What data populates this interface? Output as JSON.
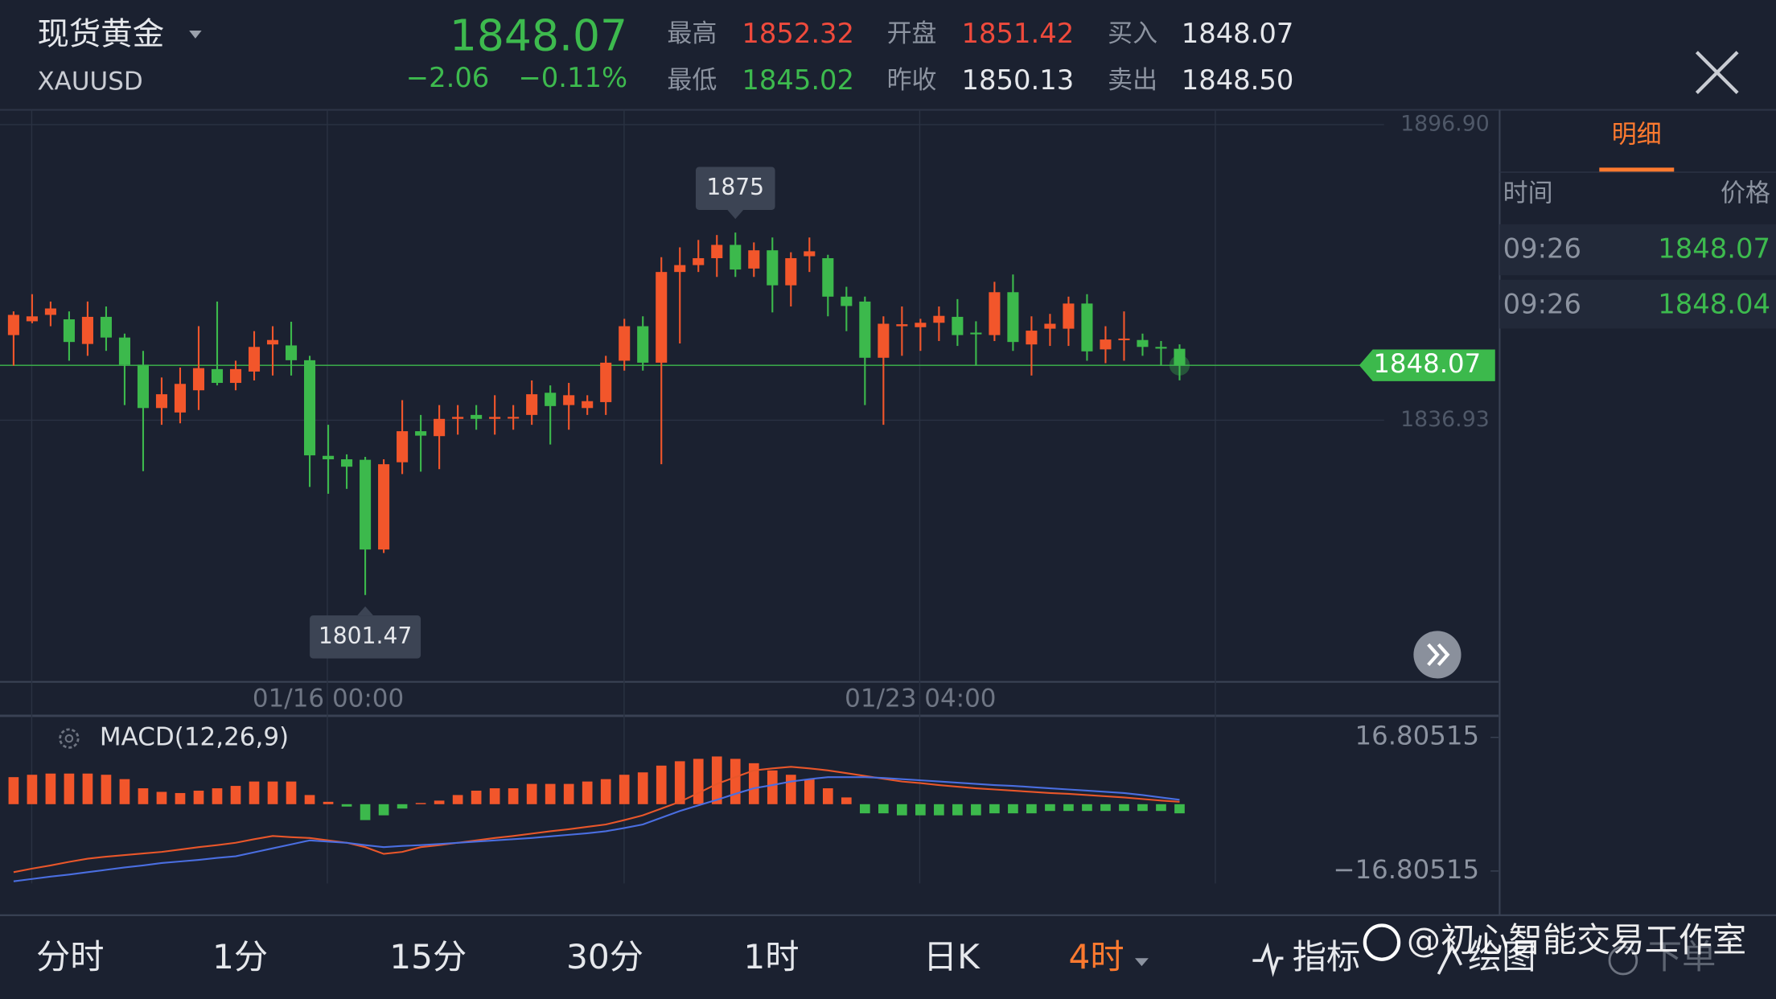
{
  "header": {
    "name": "现货黄金",
    "symbol": "XAUUSD",
    "price": "1848.07",
    "change": "−2.06",
    "change_pct": "−0.11%",
    "high_label": "最高",
    "high": "1852.32",
    "low_label": "最低",
    "low": "1845.02",
    "open_label": "开盘",
    "open": "1851.42",
    "prev_close_label": "昨收",
    "prev_close": "1850.13",
    "bid_label": "买入",
    "bid": "1848.07",
    "ask_label": "卖出",
    "ask": "1848.50"
  },
  "chart_data": [
    {
      "type": "candlestick",
      "categories": [
        null,
        null,
        null,
        null,
        null,
        null,
        null,
        null,
        null,
        null,
        null,
        null,
        null,
        null,
        null,
        null,
        null,
        "01/16 00:00",
        null,
        null,
        null,
        null,
        null,
        null,
        null,
        null,
        null,
        null,
        null,
        null,
        null,
        null,
        null,
        null,
        null,
        null,
        null,
        null,
        null,
        null,
        null,
        null,
        null,
        null,
        null,
        null,
        null,
        null,
        null,
        "01/23 04:00",
        null,
        null,
        null,
        null,
        null,
        null,
        null,
        null,
        null,
        null,
        null,
        null,
        null,
        null
      ],
      "open": [
        1854.2,
        1857,
        1858.3,
        1857.4,
        1852.4,
        1857.9,
        1853.7,
        1848.2,
        1839.4,
        1838.5,
        1843,
        1847.3,
        1844.5,
        1846.8,
        1852.3,
        1852.1,
        1849.1,
        1829.7,
        1829,
        1828.9,
        1810.7,
        1828.4,
        1834.7,
        1833.7,
        1837.2,
        1838,
        1837.2,
        1837.5,
        1838,
        1842.5,
        1840,
        1839.4,
        1840.6,
        1849,
        1856,
        1848.6,
        1867,
        1868.4,
        1869.8,
        1872.5,
        1867.7,
        1871.4,
        1864.3,
        1870.2,
        1869.8,
        1862,
        1861,
        1849.6,
        1856,
        1855.8,
        1856.7,
        1857.9,
        1854.7,
        1854.2,
        1862.9,
        1852.3,
        1855.5,
        1855.5,
        1860.6,
        1851.3,
        1853.3,
        1853.2,
        1851.8,
        1851.42
      ],
      "high": [
        1859,
        1862.5,
        1861,
        1859,
        1861,
        1860,
        1854.5,
        1851,
        1845.6,
        1847.6,
        1856,
        1861,
        1849,
        1855,
        1856,
        1856.9,
        1850,
        1836,
        1830,
        1829.5,
        1829,
        1841,
        1838,
        1840,
        1840,
        1840,
        1842,
        1840,
        1845,
        1844,
        1844.5,
        1842,
        1850,
        1857.5,
        1858,
        1870,
        1872,
        1873.5,
        1874.5,
        1875,
        1873,
        1874,
        1871,
        1874,
        1870.5,
        1864,
        1862,
        1858,
        1860,
        1857.5,
        1860,
        1861.5,
        1857,
        1865,
        1866.5,
        1858,
        1858.5,
        1862,
        1862.5,
        1856,
        1859,
        1854.5,
        1853,
        1852.32
      ],
      "low": [
        1848,
        1856.6,
        1856,
        1849,
        1850,
        1851,
        1840,
        1826.6,
        1836,
        1836.3,
        1839,
        1844,
        1843,
        1845,
        1846,
        1846,
        1823.4,
        1822,
        1823,
        1801.47,
        1810,
        1826,
        1826.5,
        1827,
        1834,
        1835,
        1834,
        1835,
        1836,
        1832,
        1835,
        1838,
        1838,
        1847,
        1847,
        1828,
        1852.5,
        1867,
        1866,
        1866,
        1866,
        1858.8,
        1860,
        1867,
        1858,
        1855,
        1840,
        1836,
        1850,
        1851,
        1853,
        1852,
        1848,
        1853,
        1851,
        1846,
        1852,
        1852,
        1849,
        1848.5,
        1849,
        1850,
        1848,
        1845.02
      ],
      "close": [
        1858.3,
        1858,
        1859.6,
        1852.8,
        1857.9,
        1853.7,
        1848.2,
        1839.4,
        1842.2,
        1844.3,
        1847.5,
        1844.5,
        1847.3,
        1851.8,
        1853.2,
        1849.1,
        1829.8,
        1829,
        1827.5,
        1810.7,
        1828,
        1834.7,
        1833.8,
        1837.2,
        1837.6,
        1837.2,
        1837.6,
        1837.6,
        1842.2,
        1839.8,
        1842,
        1840.8,
        1848.6,
        1856,
        1848.6,
        1867,
        1868.4,
        1869.8,
        1872.5,
        1867.5,
        1871.4,
        1864.3,
        1869.8,
        1871.2,
        1862,
        1860.1,
        1849.6,
        1856.5,
        1856.4,
        1856.7,
        1858.1,
        1854.2,
        1854.5,
        1862.9,
        1852.8,
        1855.1,
        1856.5,
        1860.6,
        1850.9,
        1853.3,
        1853.5,
        1851.8,
        1851.6,
        1848.07
      ],
      "up_color": "#f2562b",
      "down_color": "#3cb94c",
      "last_price": 1848.07,
      "ylim": [
        1783.85,
        1899.89
      ],
      "yticks": [
        {
          "value": 1896.9,
          "label": "1896.90"
        },
        1836.93
      ]
    },
    {
      "type": "macd",
      "title": "MACD(12,26,9)",
      "histogram": [
        6.8,
        7.4,
        7.7,
        7.7,
        7.7,
        7.4,
        6.3,
        4.0,
        3.1,
        2.8,
        3.4,
        4.0,
        4.6,
        5.7,
        5.7,
        5.7,
        2.3,
        0.6,
        -0.6,
        -4.0,
        -2.8,
        -1.1,
        0.3,
        0.9,
        2.3,
        3.4,
        4.0,
        4.0,
        5.1,
        5.1,
        5.1,
        5.7,
        6.3,
        7.4,
        8.0,
        9.7,
        10.8,
        11.4,
        12.0,
        11.4,
        10.3,
        8.5,
        7.4,
        6.3,
        4.0,
        1.7,
        -2.3,
        -2.3,
        -2.8,
        -2.8,
        -2.8,
        -2.8,
        -2.8,
        -2.3,
        -2.3,
        -2.3,
        -1.7,
        -1.7,
        -1.7,
        -1.7,
        -1.7,
        -1.7,
        -1.7,
        -2.3
      ],
      "series": [
        {
          "color": "#e8562a",
          "values": [
            -17.1,
            -16.2,
            -15.4,
            -14.5,
            -13.7,
            -13.2,
            -12.8,
            -12.4,
            -12.0,
            -11.4,
            -10.8,
            -10.3,
            -9.7,
            -8.8,
            -8.0,
            -8.3,
            -8.5,
            -9.1,
            -9.7,
            -10.8,
            -12.5,
            -12.0,
            -10.8,
            -10.3,
            -9.7,
            -9.1,
            -8.5,
            -8.0,
            -7.4,
            -6.8,
            -6.3,
            -5.7,
            -5.1,
            -4.0,
            -2.8,
            -1.1,
            0.6,
            2.8,
            5.1,
            6.8,
            8.5,
            9.0,
            9.4,
            9.0,
            8.5,
            7.8,
            7.1,
            6.4,
            5.7,
            5.3,
            4.8,
            4.4,
            4.0,
            3.7,
            3.4,
            3.1,
            2.8,
            2.6,
            2.3,
            2.0,
            1.7,
            1.3,
            0.9,
            0.6
          ]
        },
        {
          "color": "#4a6ee0",
          "values": [
            -19.4,
            -18.8,
            -18.2,
            -17.7,
            -17.1,
            -16.5,
            -15.9,
            -15.4,
            -14.8,
            -14.4,
            -14.0,
            -13.5,
            -13.1,
            -12.1,
            -11.1,
            -10.1,
            -9.1,
            -9.4,
            -9.7,
            -10.3,
            -10.8,
            -10.5,
            -10.3,
            -10.0,
            -9.7,
            -9.4,
            -9.1,
            -8.8,
            -8.5,
            -8.1,
            -7.7,
            -7.3,
            -6.8,
            -6.0,
            -5.1,
            -3.4,
            -1.7,
            -0.3,
            1.1,
            2.6,
            4.0,
            4.8,
            5.7,
            6.3,
            6.8,
            6.8,
            6.8,
            6.6,
            6.3,
            6.0,
            5.7,
            5.4,
            5.1,
            4.8,
            4.6,
            4.3,
            4.0,
            3.7,
            3.4,
            3.1,
            2.8,
            2.3,
            1.7,
            1.1
          ]
        }
      ],
      "ylim": [
        -27.91,
        21.93
      ],
      "yticks": [
        16.80515,
        {
          "value": -16.80515,
          "label": "−16.80515"
        }
      ]
    }
  ],
  "detail_panel": {
    "tab": "明细",
    "columns": [
      "时间",
      "价格"
    ],
    "rows": [
      [
        "09:26",
        "1848.07"
      ],
      [
        "09:26",
        "1848.04"
      ]
    ]
  },
  "toolbar": {
    "periods": [
      "分时",
      "1分",
      "15分",
      "30分",
      "1时",
      "日K",
      "4时"
    ],
    "active": 6,
    "tools": [
      "指标",
      "绘图",
      "下单"
    ]
  },
  "watermark": "@初心智能交易工作室"
}
